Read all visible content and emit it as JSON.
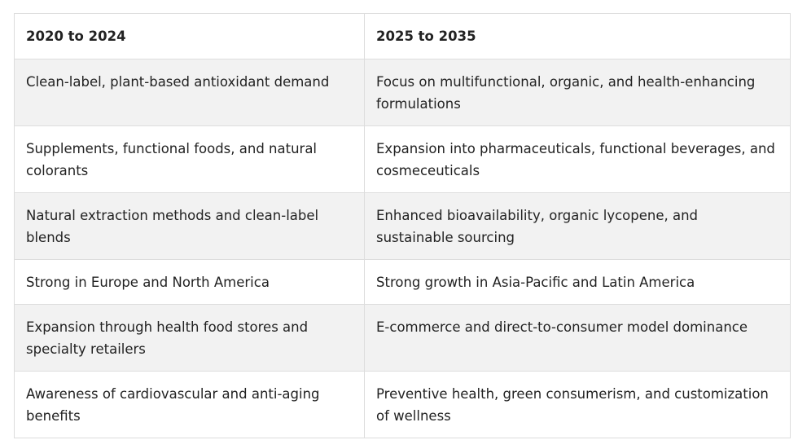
{
  "table": {
    "headers": [
      "2020 to 2024",
      "2025 to 2035"
    ],
    "rows": [
      [
        "Clean-label, plant-based antioxidant demand",
        "Focus on multifunctional, organic, and health-enhancing formulations"
      ],
      [
        "Supplements, functional foods, and natural colorants",
        "Expansion into pharmaceuticals, functional beverages, and cosmeceuticals"
      ],
      [
        "Natural extraction methods and clean-label blends",
        "Enhanced bioavailability, organic lycopene, and sustainable sourcing"
      ],
      [
        "Strong in Europe and North America",
        "Strong growth in Asia-Pacific and Latin America"
      ],
      [
        "Expansion through health food stores and specialty retailers",
        "E-commerce and direct-to-consumer model dominance"
      ],
      [
        "Awareness of cardiovascular and anti-aging benefits",
        "Preventive health, green consumerism, and customization of wellness"
      ]
    ]
  }
}
